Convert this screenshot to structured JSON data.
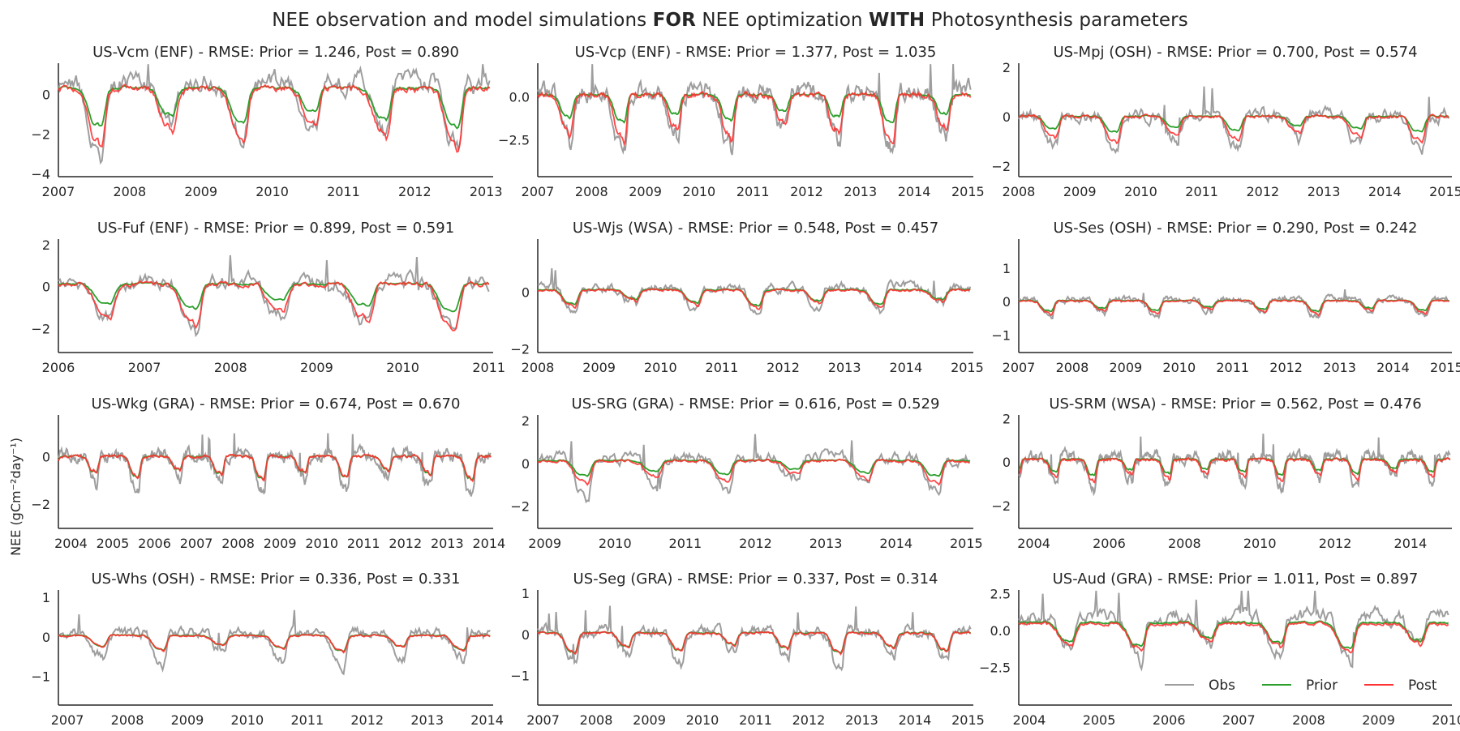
{
  "suptitle": {
    "part1": "NEE observation and model simulations ",
    "bold1": "FOR",
    "part2": " NEE optimization ",
    "bold2": "WITH",
    "part3": " Photosynthesis parameters"
  },
  "ylabel": "NEE (gCm⁻²day⁻¹)",
  "colors": {
    "obs": "#9e9e9e",
    "prior": "#2ca02c",
    "post": "#ff3333"
  },
  "legend": {
    "placement": "lower-right",
    "items": [
      "Obs",
      "Prior",
      "Post"
    ]
  },
  "chart_data": [
    {
      "type": "line",
      "title": "US-Vcm (ENF) - RMSE: Prior = 1.246, Post = 0.890",
      "xlim": [
        2007,
        2013.1
      ],
      "ylim": [
        -4.1,
        1.6
      ],
      "xticks": [
        "2007",
        "2008",
        "2009",
        "2010",
        "2011",
        "2012",
        "2013"
      ],
      "yticks": [
        "0",
        "−2",
        "−4"
      ],
      "yticks_values": [
        0,
        -2,
        -4
      ],
      "series_profile": {
        "amp_obs": 4.0,
        "amp_prior": 2.4,
        "amp_post": 3.6,
        "baseline": 0.6,
        "period": 1.0
      }
    },
    {
      "type": "line",
      "title": "US-Vcp (ENF) - RMSE: Prior = 1.377, Post = 1.035",
      "xlim": [
        2007,
        2015.1
      ],
      "ylim": [
        -4.6,
        2.0
      ],
      "xticks": [
        "2007",
        "2008",
        "2009",
        "2010",
        "2011",
        "2012",
        "2013",
        "2014",
        "2015"
      ],
      "yticks": [
        "0.0",
        "−2.5"
      ],
      "yticks_values": [
        0,
        -2.5
      ],
      "series_profile": {
        "amp_obs": 4.2,
        "amp_prior": 2.0,
        "amp_post": 3.4,
        "baseline": 0.3,
        "period": 1.0
      }
    },
    {
      "type": "line",
      "title": "US-Mpj (OSH) - RMSE: Prior = 0.700, Post = 0.574",
      "xlim": [
        2008,
        2015.1
      ],
      "ylim": [
        -2.4,
        2.2
      ],
      "xticks": [
        "2008",
        "2009",
        "2010",
        "2011",
        "2012",
        "2013",
        "2014",
        "2015"
      ],
      "yticks": [
        "2",
        "0",
        "−2"
      ],
      "yticks_values": [
        2,
        0,
        -2
      ],
      "series_profile": {
        "amp_obs": 1.9,
        "amp_prior": 0.8,
        "amp_post": 1.3,
        "baseline": 0.1,
        "period": 1.0
      }
    },
    {
      "type": "line",
      "title": "US-Fuf (ENF) - RMSE: Prior = 0.899, Post = 0.591",
      "xlim": [
        2006,
        2011.05
      ],
      "ylim": [
        -3.1,
        2.3
      ],
      "xticks": [
        "2006",
        "2007",
        "2008",
        "2009",
        "2010",
        "2011"
      ],
      "yticks": [
        "2",
        "0",
        "−2"
      ],
      "yticks_values": [
        2,
        0,
        -2
      ],
      "series_profile": {
        "amp_obs": 3.0,
        "amp_prior": 1.6,
        "amp_post": 2.6,
        "baseline": 0.3,
        "period": 1.0
      }
    },
    {
      "type": "line",
      "title": "US-Wjs (WSA) - RMSE: Prior = 0.548, Post = 0.457",
      "xlim": [
        2008,
        2015.1
      ],
      "ylim": [
        -2.1,
        1.9
      ],
      "xticks": [
        "2008",
        "2009",
        "2010",
        "2011",
        "2012",
        "2013",
        "2014",
        "2015"
      ],
      "yticks": [
        "0",
        "−2"
      ],
      "yticks_values": [
        0,
        -2
      ],
      "series_profile": {
        "amp_obs": 1.2,
        "amp_prior": 0.7,
        "amp_post": 0.8,
        "baseline": 0.2,
        "period": 1.0
      }
    },
    {
      "type": "line",
      "title": "US-Ses (OSH) - RMSE: Prior = 0.290, Post = 0.242",
      "xlim": [
        2007,
        2015.1
      ],
      "ylim": [
        -1.5,
        1.9
      ],
      "xticks": [
        "2007",
        "2008",
        "2009",
        "2010",
        "2011",
        "2012",
        "2013",
        "2014",
        "2015"
      ],
      "yticks": [
        "1",
        "0",
        "−1"
      ],
      "yticks_values": [
        1,
        0,
        -1
      ],
      "series_profile": {
        "amp_obs": 0.7,
        "amp_prior": 0.4,
        "amp_post": 0.5,
        "baseline": 0.1,
        "period": 1.0
      }
    },
    {
      "type": "line",
      "title": "US-Wkg (GRA) - RMSE: Prior = 0.674, Post = 0.670",
      "xlim": [
        2003.7,
        2014.1
      ],
      "ylim": [
        -3.0,
        1.8
      ],
      "xticks": [
        "2004",
        "2005",
        "2006",
        "2007",
        "2008",
        "2009",
        "2010",
        "2011",
        "2012",
        "2013",
        "2014"
      ],
      "yticks": [
        "0",
        "−2"
      ],
      "yticks_values": [
        0,
        -2
      ],
      "series_profile": {
        "amp_obs": 2.0,
        "amp_prior": 1.2,
        "amp_post": 1.2,
        "baseline": 0.1,
        "period": 1.0
      }
    },
    {
      "type": "line",
      "title": "US-SRG (GRA) - RMSE: Prior = 0.616, Post = 0.529",
      "xlim": [
        2008.9,
        2015.1
      ],
      "ylim": [
        -3.0,
        2.3
      ],
      "xticks": [
        "2009",
        "2010",
        "2011",
        "2012",
        "2013",
        "2014",
        "2015"
      ],
      "yticks": [
        "2",
        "0",
        "−2"
      ],
      "yticks_values": [
        2,
        0,
        -2
      ],
      "series_profile": {
        "amp_obs": 2.2,
        "amp_prior": 0.9,
        "amp_post": 1.3,
        "baseline": 0.3,
        "period": 1.0
      }
    },
    {
      "type": "line",
      "title": "US-SRM (WSA) - RMSE: Prior = 0.562, Post = 0.476",
      "xlim": [
        2003.6,
        2015.1
      ],
      "ylim": [
        -3.0,
        2.2
      ],
      "xticks": [
        "2004",
        "2006",
        "2008",
        "2010",
        "2012",
        "2014"
      ],
      "yticks": [
        "2",
        "0",
        "−2"
      ],
      "yticks_values": [
        2,
        0,
        -2
      ],
      "series_profile": {
        "amp_obs": 1.9,
        "amp_prior": 0.9,
        "amp_post": 1.2,
        "baseline": 0.3,
        "period": 1.0
      }
    },
    {
      "type": "line",
      "title": "US-Whs (OSH) - RMSE: Prior = 0.336, Post = 0.331",
      "xlim": [
        2006.85,
        2014.1
      ],
      "ylim": [
        -1.7,
        1.2
      ],
      "xticks": [
        "2007",
        "2008",
        "2009",
        "2010",
        "2011",
        "2012",
        "2013",
        "2014"
      ],
      "yticks": [
        "1",
        "0",
        "−1"
      ],
      "yticks_values": [
        1,
        0,
        -1
      ],
      "series_profile": {
        "amp_obs": 1.0,
        "amp_prior": 0.5,
        "amp_post": 0.5,
        "baseline": 0.1,
        "period": 1.0
      }
    },
    {
      "type": "line",
      "title": "US-Seg (GRA) - RMSE: Prior = 0.337, Post = 0.314",
      "xlim": [
        2006.9,
        2015.1
      ],
      "ylim": [
        -1.7,
        1.1
      ],
      "xticks": [
        "2007",
        "2008",
        "2009",
        "2010",
        "2011",
        "2012",
        "2013",
        "2014",
        "2015"
      ],
      "yticks": [
        "1",
        "0",
        "−1"
      ],
      "yticks_values": [
        1,
        0,
        -1
      ],
      "series_profile": {
        "amp_obs": 1.0,
        "amp_prior": 0.6,
        "amp_post": 0.6,
        "baseline": 0.1,
        "period": 1.0
      }
    },
    {
      "type": "line",
      "title": "US-Aud (GRA) - RMSE: Prior = 1.011, Post = 0.897",
      "xlim": [
        2003.85,
        2010.05
      ],
      "ylim": [
        -5.0,
        2.8
      ],
      "xticks": [
        "2004",
        "2005",
        "2006",
        "2007",
        "2008",
        "2009",
        "2010"
      ],
      "yticks": [
        "2.5",
        "0.0",
        "−2.5"
      ],
      "yticks_values": [
        2.5,
        0,
        -2.5
      ],
      "series_profile": {
        "amp_obs": 3.8,
        "amp_prior": 2.2,
        "amp_post": 2.4,
        "baseline": 1.0,
        "period": 1.0
      }
    }
  ]
}
